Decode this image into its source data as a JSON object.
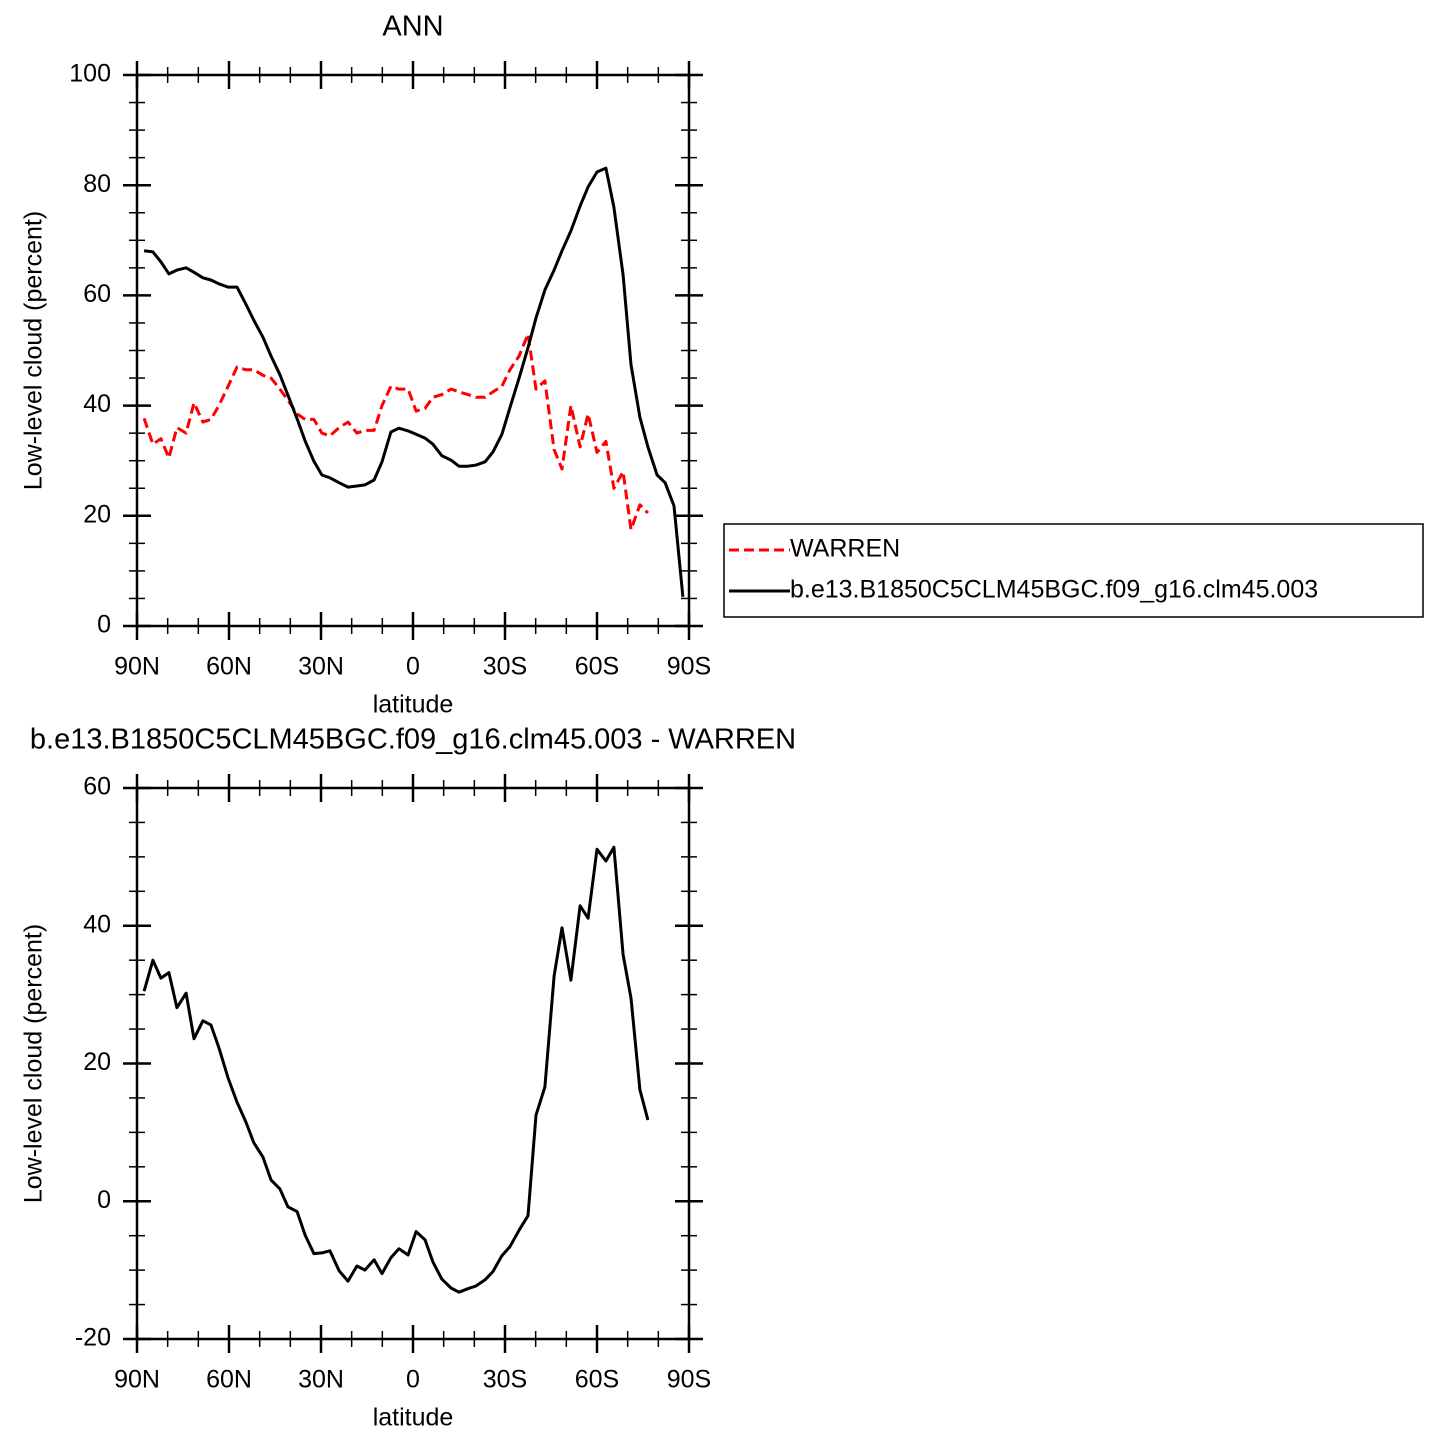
{
  "chart_data": [
    {
      "type": "line",
      "title": "ANN",
      "xlabel": "latitude",
      "ylabel": "Low-level cloud (percent)",
      "x": [
        87.7,
        84.8,
        82.2,
        79.6,
        77,
        74,
        71.4,
        68.5,
        65.9,
        63.3,
        60.3,
        57.4,
        54.5,
        51.9,
        48.9,
        46.3,
        43.4,
        40.8,
        37.8,
        35.2,
        32.3,
        29.7,
        27.1,
        24.1,
        21.2,
        18.3,
        15.7,
        12.7,
        10.1,
        7.2,
        4.6,
        1.6,
        -1,
        -3.9,
        -6.5,
        -9.4,
        -12.4,
        -15,
        -17.9,
        -20.5,
        -23.5,
        -26.1,
        -29,
        -31.6,
        -34.6,
        -37.5,
        -40.1,
        -43,
        -46,
        -48.6,
        -51.5,
        -54.5,
        -57.1,
        -60,
        -62.9,
        -65.5,
        -68.5,
        -71.1,
        -74,
        -76.6,
        -79.6,
        -82.2,
        -85.1,
        -88
      ],
      "series": [
        {
          "name": "WARREN",
          "color": "#ff0000",
          "dashed": true,
          "values": [
            37.7,
            33,
            34,
            30.5,
            36,
            35,
            40.5,
            37,
            37.5,
            40,
            43.5,
            47,
            46.5,
            46.5,
            45.5,
            45,
            43,
            41,
            38.5,
            37.5,
            37.5,
            35,
            34.5,
            36,
            37,
            35,
            35.5,
            35.5,
            40,
            43.5,
            43,
            43,
            39,
            39.5,
            41.5,
            42,
            43,
            42.5,
            42,
            41.5,
            41.5,
            42.5,
            43.5,
            46.5,
            49,
            53,
            43,
            44.5,
            32,
            28.5,
            40,
            32.5,
            38.5,
            31.5,
            33.5,
            25,
            28,
            17.5,
            22,
            20.5,
            null,
            null,
            null,
            null
          ]
        },
        {
          "name": "b.e13.B1850C5CLM45BGC.f09_g16.clm45.003",
          "color": "#000000",
          "dashed": false,
          "values": [
            68.1,
            67.9,
            66.1,
            63.9,
            64.6,
            65,
            64.2,
            63.2,
            62.8,
            62.1,
            61.5,
            61.5,
            58.4,
            55.5,
            52.4,
            49,
            45.6,
            41.9,
            37.6,
            33.6,
            29.9,
            27.4,
            26.9,
            26,
            25.2,
            25.4,
            25.6,
            26.5,
            29.8,
            35.2,
            35.9,
            35.4,
            34.8,
            34.1,
            33,
            30.9,
            30.1,
            29,
            29,
            29.2,
            29.8,
            31.6,
            34.8,
            39.6,
            45,
            50.5,
            55.9,
            61,
            64.6,
            68.1,
            71.7,
            76.2,
            79.7,
            82.4,
            83.1,
            76,
            63.7,
            47.4,
            37.9,
            32.5,
            27.4,
            26,
            21.8,
            5.3
          ]
        }
      ],
      "xlim": [
        90,
        -90
      ],
      "xticks": [
        {
          "value": 90,
          "label": "90N"
        },
        {
          "value": 60,
          "label": "60N"
        },
        {
          "value": 30,
          "label": "30N"
        },
        0,
        {
          "value": -30,
          "label": "30S"
        },
        {
          "value": -60,
          "label": "60S"
        },
        {
          "value": -90,
          "label": "90S"
        }
      ],
      "ylim": [
        0,
        100
      ],
      "yticks": [
        0,
        20,
        40,
        60,
        80,
        100
      ],
      "legend": "right"
    },
    {
      "type": "line",
      "title": "b.e13.B1850C5CLM45BGC.f09_g16.clm45.003 - WARREN",
      "xlabel": "latitude",
      "ylabel": "Low-level cloud (percent)",
      "x": [
        87.7,
        84.8,
        82.2,
        79.6,
        77,
        74,
        71.4,
        68.5,
        65.9,
        63.3,
        60.3,
        57.4,
        54.5,
        51.9,
        48.9,
        46.3,
        43.4,
        40.8,
        37.8,
        35.2,
        32.3,
        29.7,
        27.1,
        24.1,
        21.2,
        18.3,
        15.7,
        12.7,
        10.1,
        7.2,
        4.6,
        1.6,
        -1,
        -3.9,
        -6.5,
        -9.4,
        -12.4,
        -15,
        -17.9,
        -20.5,
        -23.5,
        -26.1,
        -29,
        -31.6,
        -34.6,
        -37.5,
        -40.1,
        -43,
        -46,
        -48.6,
        -51.5,
        -54.5,
        -57.1,
        -60,
        -62.9,
        -65.5,
        -68.5,
        -71.1,
        -74,
        -76.6
      ],
      "series": [
        {
          "color": "#000000",
          "dashed": false,
          "values": [
            30.5,
            35,
            32.4,
            33.2,
            28.1,
            30.2,
            23.6,
            26.2,
            25.6,
            22.3,
            17.9,
            14.4,
            11.5,
            8.5,
            6.4,
            3.1,
            1.8,
            -0.8,
            -1.5,
            -4.9,
            -7.6,
            -7.5,
            -7.2,
            -10.1,
            -11.6,
            -9.4,
            -10,
            -8.5,
            -10.5,
            -8.2,
            -6.9,
            -7.8,
            -4.4,
            -5.6,
            -8.8,
            -11.3,
            -12.6,
            -13.2,
            -12.7,
            -12.3,
            -11.4,
            -10.2,
            -7.9,
            -6.6,
            -4.2,
            -2.1,
            12.5,
            16.6,
            32.7,
            39.7,
            32.1,
            42.9,
            41.1,
            51.1,
            49.4,
            51.4,
            35.8,
            29.5,
            16.2,
            11.8
          ]
        }
      ],
      "xlim": [
        90,
        -90
      ],
      "xticks": [
        {
          "value": 90,
          "label": "90N"
        },
        {
          "value": 60,
          "label": "60N"
        },
        {
          "value": 30,
          "label": "30N"
        },
        0,
        {
          "value": -30,
          "label": "30S"
        },
        {
          "value": -60,
          "label": "60S"
        },
        {
          "value": -90,
          "label": "90S"
        }
      ],
      "ylim": [
        -20,
        60
      ],
      "yticks": [
        -20,
        0,
        20,
        40,
        60
      ]
    }
  ]
}
